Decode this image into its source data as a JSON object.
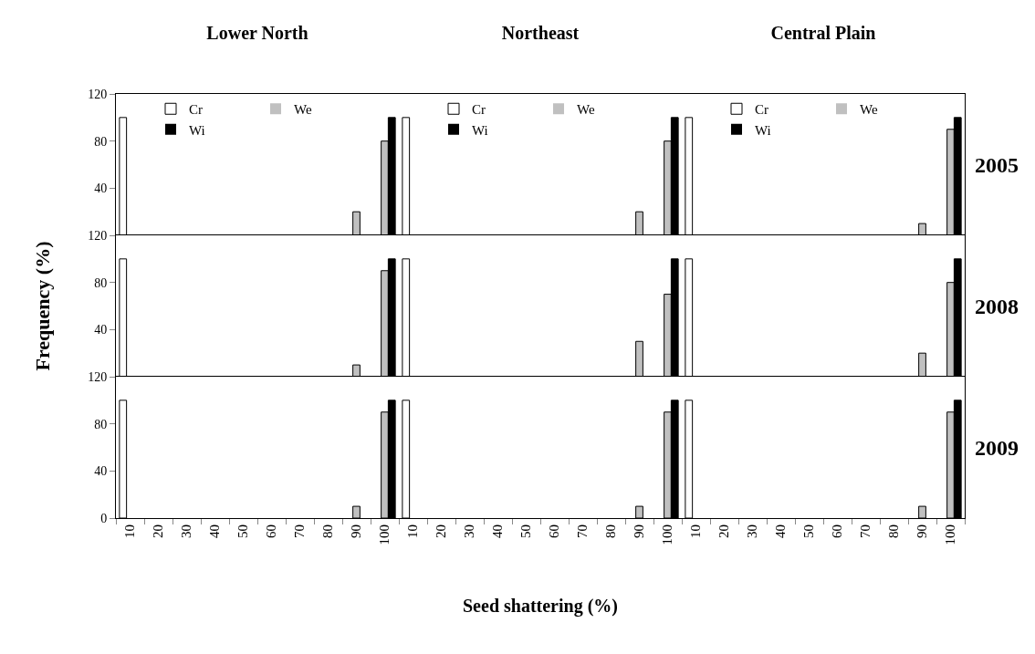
{
  "chart_data": [
    {
      "type": "bar",
      "title": "Lower North",
      "categories": [
        "10",
        "20",
        "30",
        "40",
        "50",
        "60",
        "70",
        "80",
        "90",
        "100"
      ],
      "series": [
        {
          "name": "Cr",
          "color": "#ffffff",
          "values": [
            100,
            0,
            0,
            0,
            0,
            0,
            0,
            0,
            0,
            0
          ]
        },
        {
          "name": "We",
          "color": "#c0c0c0",
          "values": [
            0,
            0,
            0,
            0,
            0,
            0,
            0,
            0,
            20,
            80
          ]
        },
        {
          "name": "Wi",
          "color": "#000000",
          "values": [
            0,
            0,
            0,
            0,
            0,
            0,
            0,
            0,
            0,
            100
          ]
        }
      ],
      "ylim": [
        0,
        120
      ],
      "yticks": [
        {
          "value": 0,
          "label": null
        },
        40,
        80,
        120
      ],
      "legend": "top",
      "tick_labels": "y"
    },
    {
      "type": "bar",
      "title": "Northeast",
      "categories": [
        "10",
        "20",
        "30",
        "40",
        "50",
        "60",
        "70",
        "80",
        "90",
        "100"
      ],
      "series": [
        {
          "name": "Cr",
          "color": "#ffffff",
          "values": [
            100,
            0,
            0,
            0,
            0,
            0,
            0,
            0,
            0,
            0
          ]
        },
        {
          "name": "We",
          "color": "#c0c0c0",
          "values": [
            0,
            0,
            0,
            0,
            0,
            0,
            0,
            0,
            20,
            80
          ]
        },
        {
          "name": "Wi",
          "color": "#000000",
          "values": [
            0,
            0,
            0,
            0,
            0,
            0,
            0,
            0,
            0,
            100
          ]
        }
      ],
      "ylim": [
        0,
        120
      ],
      "yticks": [
        0,
        40,
        80,
        120
      ],
      "legend": "top",
      "tick_labels": false
    },
    {
      "type": "bar",
      "title": "Central Plain",
      "annotations": [
        "2005"
      ],
      "categories": [
        "10",
        "20",
        "30",
        "40",
        "50",
        "60",
        "70",
        "80",
        "90",
        "100"
      ],
      "series": [
        {
          "name": "Cr",
          "color": "#ffffff",
          "values": [
            100,
            0,
            0,
            0,
            0,
            0,
            0,
            0,
            0,
            0
          ]
        },
        {
          "name": "We",
          "color": "#c0c0c0",
          "values": [
            0,
            0,
            0,
            0,
            0,
            0,
            0,
            0,
            10,
            90
          ]
        },
        {
          "name": "Wi",
          "color": "#000000",
          "values": [
            0,
            0,
            0,
            0,
            0,
            0,
            0,
            0,
            0,
            100
          ]
        }
      ],
      "ylim": [
        0,
        120
      ],
      "yticks": [
        0,
        40,
        80,
        120
      ],
      "legend": "top",
      "tick_labels": false
    },
    {
      "type": "bar",
      "ylabel": "Frequency (%)",
      "categories": [
        "10",
        "20",
        "30",
        "40",
        "50",
        "60",
        "70",
        "80",
        "90",
        "100"
      ],
      "series": [
        {
          "color": "#ffffff",
          "values": [
            100,
            0,
            0,
            0,
            0,
            0,
            0,
            0,
            0,
            0
          ]
        },
        {
          "color": "#c0c0c0",
          "values": [
            0,
            0,
            0,
            0,
            0,
            0,
            0,
            0,
            10,
            90
          ]
        },
        {
          "color": "#000000",
          "values": [
            0,
            0,
            0,
            0,
            0,
            0,
            0,
            0,
            0,
            100
          ]
        }
      ],
      "ylim": [
        0,
        120
      ],
      "yticks": [
        {
          "value": 0,
          "label": null
        },
        40,
        80,
        120
      ],
      "tick_labels": "y"
    },
    {
      "type": "bar",
      "categories": [
        "10",
        "20",
        "30",
        "40",
        "50",
        "60",
        "70",
        "80",
        "90",
        "100"
      ],
      "series": [
        {
          "color": "#ffffff",
          "values": [
            100,
            0,
            0,
            0,
            0,
            0,
            0,
            0,
            0,
            0
          ]
        },
        {
          "color": "#c0c0c0",
          "values": [
            0,
            0,
            0,
            0,
            0,
            0,
            0,
            0,
            30,
            70
          ]
        },
        {
          "color": "#000000",
          "values": [
            0,
            0,
            0,
            0,
            0,
            0,
            0,
            0,
            0,
            100
          ]
        }
      ],
      "ylim": [
        0,
        120
      ],
      "yticks": [
        0,
        40,
        80,
        120
      ],
      "tick_labels": false
    },
    {
      "type": "bar",
      "annotations": [
        "2008"
      ],
      "categories": [
        "10",
        "20",
        "30",
        "40",
        "50",
        "60",
        "70",
        "80",
        "90",
        "100"
      ],
      "series": [
        {
          "color": "#ffffff",
          "values": [
            100,
            0,
            0,
            0,
            0,
            0,
            0,
            0,
            0,
            0
          ]
        },
        {
          "color": "#c0c0c0",
          "values": [
            0,
            0,
            0,
            0,
            0,
            0,
            0,
            0,
            20,
            80
          ]
        },
        {
          "color": "#000000",
          "values": [
            0,
            0,
            0,
            0,
            0,
            0,
            0,
            0,
            0,
            100
          ]
        }
      ],
      "ylim": [
        0,
        120
      ],
      "yticks": [
        0,
        40,
        80,
        120
      ],
      "tick_labels": false
    },
    {
      "type": "bar",
      "categories": [
        "10",
        "20",
        "30",
        "40",
        "50",
        "60",
        "70",
        "80",
        "90",
        "100"
      ],
      "series": [
        {
          "color": "#ffffff",
          "values": [
            100,
            0,
            0,
            0,
            0,
            0,
            0,
            0,
            0,
            0
          ]
        },
        {
          "color": "#c0c0c0",
          "values": [
            0,
            0,
            0,
            0,
            0,
            0,
            0,
            0,
            10,
            90
          ]
        },
        {
          "color": "#000000",
          "values": [
            0,
            0,
            0,
            0,
            0,
            0,
            0,
            0,
            0,
            100
          ]
        }
      ],
      "ylim": [
        0,
        120
      ],
      "yticks": [
        0,
        40,
        80,
        120
      ]
    },
    {
      "type": "bar",
      "xlabel": "Seed shattering (%)",
      "categories": [
        "10",
        "20",
        "30",
        "40",
        "50",
        "60",
        "70",
        "80",
        "90",
        "100"
      ],
      "series": [
        {
          "color": "#ffffff",
          "values": [
            100,
            0,
            0,
            0,
            0,
            0,
            0,
            0,
            0,
            0
          ]
        },
        {
          "color": "#c0c0c0",
          "values": [
            0,
            0,
            0,
            0,
            0,
            0,
            0,
            0,
            10,
            90
          ]
        },
        {
          "color": "#000000",
          "values": [
            0,
            0,
            0,
            0,
            0,
            0,
            0,
            0,
            0,
            100
          ]
        }
      ],
      "ylim": [
        0,
        120
      ],
      "yticks": [
        0,
        40,
        80,
        120
      ],
      "tick_labels": "x"
    },
    {
      "type": "bar",
      "annotations": [
        "2009"
      ],
      "categories": [
        "10",
        "20",
        "30",
        "40",
        "50",
        "60",
        "70",
        "80",
        "90",
        "100"
      ],
      "series": [
        {
          "color": "#ffffff",
          "values": [
            100,
            0,
            0,
            0,
            0,
            0,
            0,
            0,
            0,
            0
          ]
        },
        {
          "color": "#c0c0c0",
          "values": [
            0,
            0,
            0,
            0,
            0,
            0,
            0,
            0,
            10,
            90
          ]
        },
        {
          "color": "#000000",
          "values": [
            0,
            0,
            0,
            0,
            0,
            0,
            0,
            0,
            0,
            100
          ]
        }
      ],
      "ylim": [
        0,
        120
      ],
      "yticks": [
        0,
        40,
        80,
        120
      ],
      "tick_labels": "x"
    }
  ]
}
